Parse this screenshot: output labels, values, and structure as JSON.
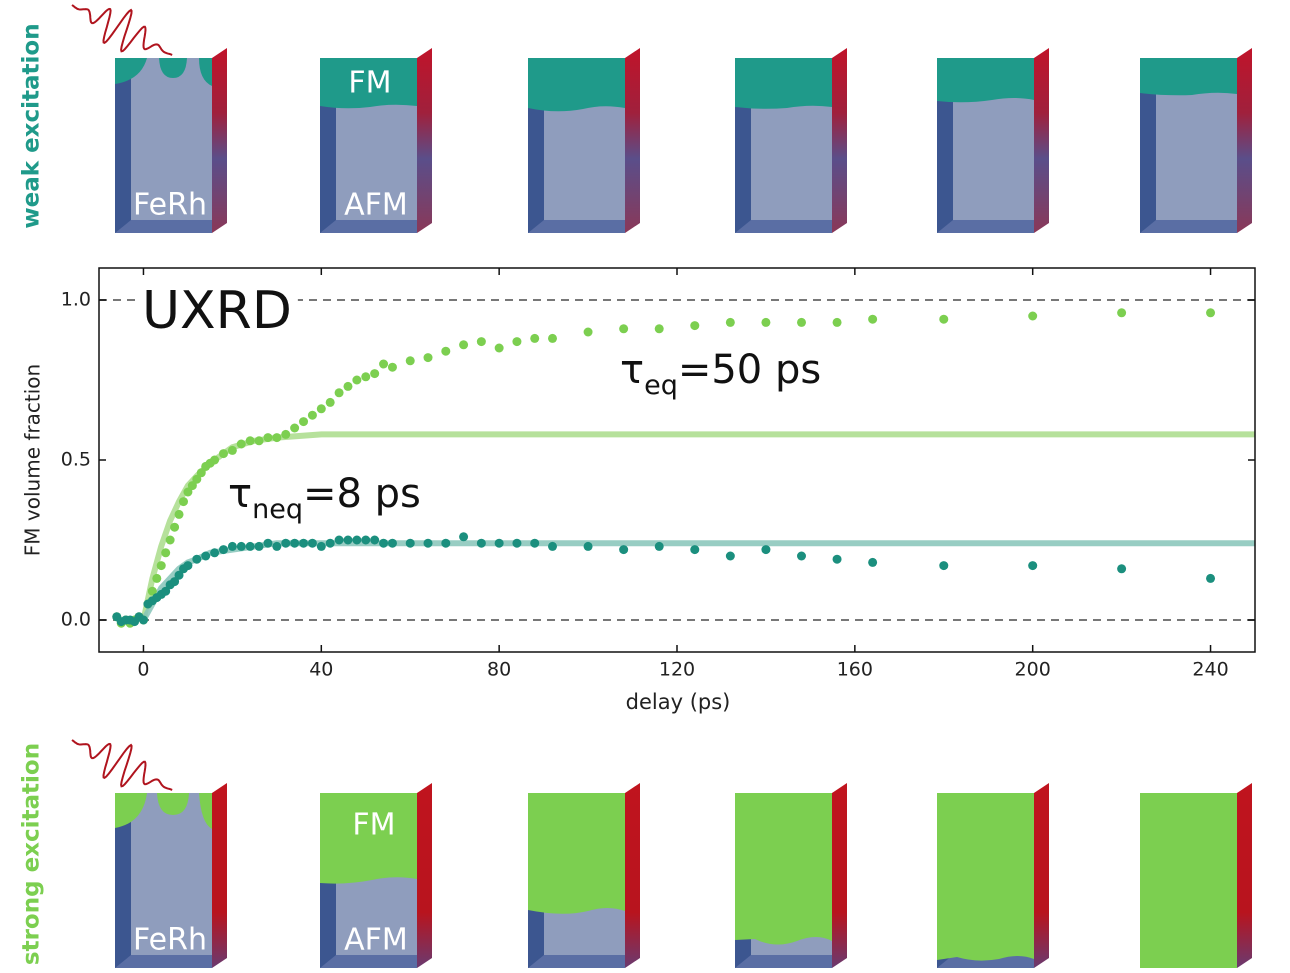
{
  "chart_data": {
    "type": "scatter",
    "xlabel": "delay (ps)",
    "ylabel": "FM volume fraction",
    "xlim": [
      -10,
      250
    ],
    "ylim": [
      -0.1,
      1.1
    ],
    "xticks": [
      0,
      40,
      80,
      120,
      160,
      200,
      240
    ],
    "yticks": [
      {
        "value": 0,
        "label": "0.0"
      },
      {
        "value": 0.5,
        "label": "0.5"
      },
      {
        "value": 1,
        "label": "1.0"
      }
    ],
    "hlines": [
      0,
      1
    ],
    "hline_color": "#777777",
    "annotations": [
      {
        "text": "UXRD"
      },
      {
        "symbol": "τ",
        "subscript": "eq",
        "text": "=50 ps"
      },
      {
        "symbol": "τ",
        "subscript": "neq",
        "text": "=8 ps"
      }
    ],
    "series": [
      {
        "color": "#7ccf50",
        "x": [
          -6,
          -5,
          -4,
          -3,
          -2,
          -1,
          0,
          1,
          2,
          3,
          4,
          5,
          6,
          7,
          8,
          9,
          10,
          11,
          12,
          13,
          14,
          15,
          16,
          18,
          20,
          22,
          24,
          26,
          28,
          30,
          32,
          34,
          36,
          38,
          40,
          42,
          44,
          46,
          48,
          50,
          52,
          54,
          56,
          60,
          64,
          68,
          72,
          76,
          80,
          84,
          88,
          92,
          100,
          108,
          116,
          124,
          132,
          140,
          148,
          156,
          164,
          180,
          200,
          220,
          240
        ],
        "values": [
          0.01,
          -0.01,
          0,
          -0.01,
          0,
          0.01,
          0,
          0.05,
          0.09,
          0.13,
          0.17,
          0.21,
          0.25,
          0.29,
          0.33,
          0.37,
          0.4,
          0.42,
          0.44,
          0.46,
          0.48,
          0.49,
          0.5,
          0.52,
          0.53,
          0.55,
          0.56,
          0.56,
          0.57,
          0.57,
          0.58,
          0.6,
          0.62,
          0.64,
          0.66,
          0.68,
          0.71,
          0.73,
          0.75,
          0.76,
          0.77,
          0.8,
          0.79,
          0.81,
          0.82,
          0.84,
          0.86,
          0.87,
          0.85,
          0.87,
          0.88,
          0.88,
          0.9,
          0.91,
          0.91,
          0.92,
          0.93,
          0.93,
          0.93,
          0.93,
          0.94,
          0.94,
          0.95,
          0.96,
          0.96
        ]
      },
      {
        "color": "#1b8f7e",
        "x": [
          -6,
          -5,
          -4,
          -3,
          -2,
          -1,
          0,
          1,
          2,
          3,
          4,
          5,
          6,
          7,
          8,
          9,
          10,
          12,
          14,
          16,
          18,
          20,
          22,
          24,
          26,
          28,
          30,
          32,
          34,
          36,
          38,
          40,
          42,
          44,
          46,
          48,
          50,
          52,
          54,
          56,
          60,
          64,
          68,
          72,
          76,
          80,
          84,
          88,
          92,
          100,
          108,
          116,
          124,
          132,
          140,
          148,
          156,
          164,
          180,
          200,
          220,
          240
        ],
        "values": [
          0.01,
          -0.005,
          0,
          0,
          -0.005,
          0.01,
          0,
          0.05,
          0.06,
          0.07,
          0.08,
          0.09,
          0.11,
          0.12,
          0.14,
          0.16,
          0.17,
          0.19,
          0.2,
          0.21,
          0.22,
          0.23,
          0.23,
          0.23,
          0.23,
          0.24,
          0.23,
          0.24,
          0.24,
          0.24,
          0.24,
          0.23,
          0.24,
          0.25,
          0.25,
          0.25,
          0.25,
          0.25,
          0.24,
          0.24,
          0.24,
          0.24,
          0.24,
          0.26,
          0.24,
          0.24,
          0.24,
          0.24,
          0.23,
          0.23,
          0.22,
          0.23,
          0.22,
          0.2,
          0.22,
          0.2,
          0.19,
          0.18,
          0.17,
          0.17,
          0.16,
          0.13
        ]
      }
    ],
    "fit_lines": [
      {
        "color": "#a9dc8a",
        "x": [
          0,
          2,
          4,
          6,
          8,
          10,
          12,
          15,
          20,
          25,
          30,
          40,
          60,
          100,
          150,
          200,
          250
        ],
        "values": [
          0,
          0.13,
          0.23,
          0.31,
          0.37,
          0.42,
          0.45,
          0.49,
          0.54,
          0.56,
          0.57,
          0.58,
          0.58,
          0.58,
          0.58,
          0.58,
          0.58
        ]
      },
      {
        "color": "#86c4b9",
        "x": [
          0,
          2,
          4,
          6,
          8,
          10,
          12,
          15,
          20,
          25,
          30,
          40,
          60,
          100,
          150,
          200,
          250
        ],
        "values": [
          0,
          0.05,
          0.1,
          0.13,
          0.16,
          0.18,
          0.19,
          0.21,
          0.22,
          0.23,
          0.24,
          0.24,
          0.24,
          0.24,
          0.24,
          0.24,
          0.24
        ]
      }
    ]
  },
  "schematics": [
    {
      "label": "weak excitation",
      "sample": "FeRh",
      "top_phase": "FM",
      "bottom_phase": "AFM"
    },
    {
      "label": "strong excitation",
      "sample": "FeRh",
      "top_phase": "FM",
      "bottom_phase": "AFM"
    }
  ]
}
